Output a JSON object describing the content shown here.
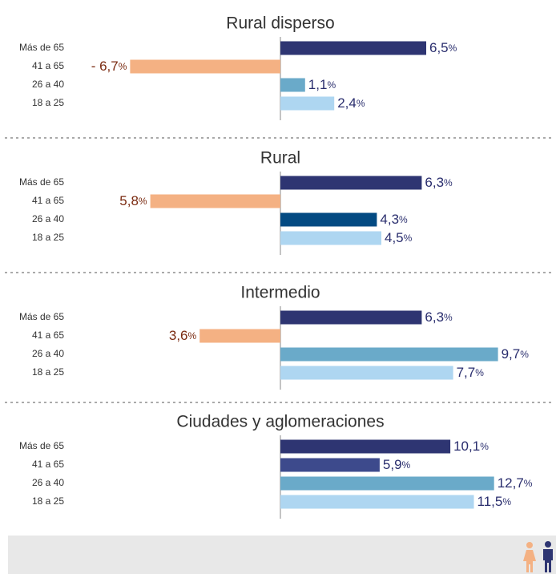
{
  "chart_data": [
    {
      "type": "bar",
      "orientation": "horizontal",
      "title": "Rural disperso",
      "categories": [
        "Más de 65",
        "41 a 65",
        "26 a 40",
        "18 a 25"
      ],
      "values": [
        6.5,
        -6.7,
        1.1,
        2.4
      ],
      "value_labels": [
        "6,5%",
        "- 6,7%",
        "1,1%",
        "2,4%"
      ],
      "colors": [
        "#2e3572",
        "#f4b183",
        "#6aaac9",
        "#aed6f1"
      ],
      "xlim": [
        -12,
        12
      ]
    },
    {
      "type": "bar",
      "orientation": "horizontal",
      "title": "Rural",
      "categories": [
        "Más de 65",
        "41 a 65",
        "26 a 40",
        "18 a 25"
      ],
      "values": [
        6.3,
        -5.8,
        4.3,
        4.5
      ],
      "value_labels": [
        "6,3%",
        "5,8%",
        "4,3%",
        "4,5%"
      ],
      "colors": [
        "#2e3572",
        "#f4b183",
        "#034a82",
        "#aed6f1"
      ],
      "xlim": [
        -12,
        12
      ]
    },
    {
      "type": "bar",
      "orientation": "horizontal",
      "title": "Intermedio",
      "categories": [
        "Más de 65",
        "41 a 65",
        "26 a 40",
        "18 a 25"
      ],
      "values": [
        6.3,
        -3.6,
        9.7,
        7.7
      ],
      "value_labels": [
        "6,3%",
        "3,6%",
        "9,7%",
        "7,7%"
      ],
      "colors": [
        "#2e3572",
        "#f4b183",
        "#6aaac9",
        "#aed6f1"
      ],
      "xlim": [
        -12,
        12
      ]
    },
    {
      "type": "bar",
      "orientation": "horizontal",
      "title": "Ciudades y aglomeraciones",
      "categories": [
        "Más de 65",
        "41 a 65",
        "26 a 40",
        "18 a 25"
      ],
      "values": [
        10.1,
        5.9,
        12.7,
        11.5
      ],
      "value_labels": [
        "10,1%",
        "5,9%",
        "12,7%",
        "11,5%"
      ],
      "colors": [
        "#2e3572",
        "#3d4a8c",
        "#6aaac9",
        "#aed6f1"
      ],
      "xlim": [
        -16,
        16
      ]
    }
  ]
}
